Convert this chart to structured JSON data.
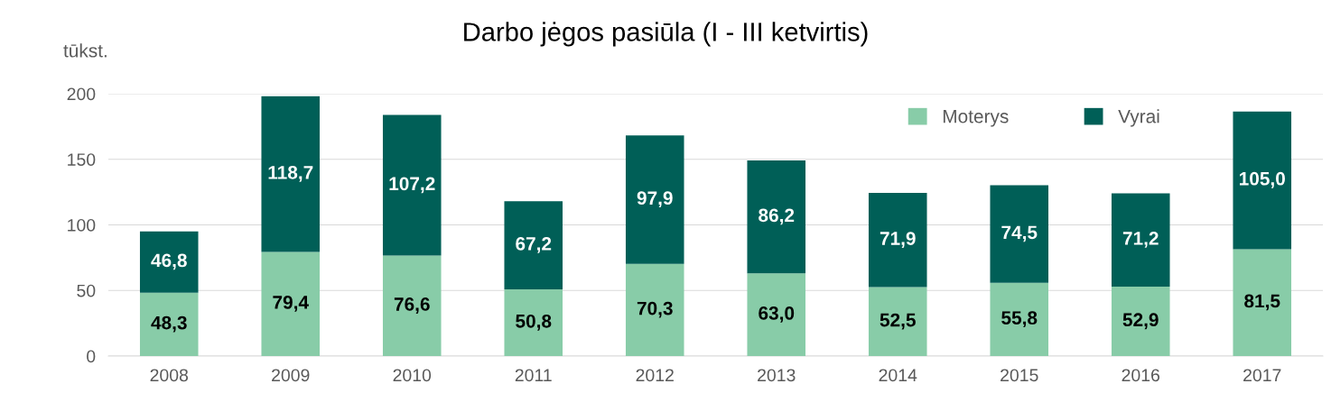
{
  "chart_data": {
    "type": "bar",
    "title": "Darbo jėgos pasiūla (I - III ketvirtis)",
    "ylabel": "tūkst.",
    "categories": [
      "2008",
      "2009",
      "2010",
      "2011",
      "2012",
      "2013",
      "2014",
      "2015",
      "2016",
      "2017"
    ],
    "stacked": true,
    "series": [
      {
        "name": "Moterys",
        "color": "#88cca8",
        "values": [
          48.3,
          79.4,
          76.6,
          50.8,
          70.3,
          63.0,
          52.5,
          55.8,
          52.9,
          81.5
        ],
        "value_labels": [
          "48,3",
          "79,4",
          "76,6",
          "50,8",
          "70,3",
          "63,0",
          "52,5",
          "55,8",
          "52,9",
          "81,5"
        ]
      },
      {
        "name": "Vyrai",
        "color": "#005f57",
        "values": [
          46.8,
          118.7,
          107.2,
          67.2,
          97.9,
          86.2,
          71.9,
          74.5,
          71.2,
          105.0
        ],
        "value_labels": [
          "46,8",
          "118,7",
          "107,2",
          "67,2",
          "97,9",
          "86,2",
          "71,9",
          "74,5",
          "71,2",
          "105,0"
        ]
      }
    ],
    "ylim": [
      0,
      200
    ],
    "yticks": [
      0,
      50,
      100,
      150,
      200
    ],
    "grid": "y",
    "legend": "top right"
  }
}
